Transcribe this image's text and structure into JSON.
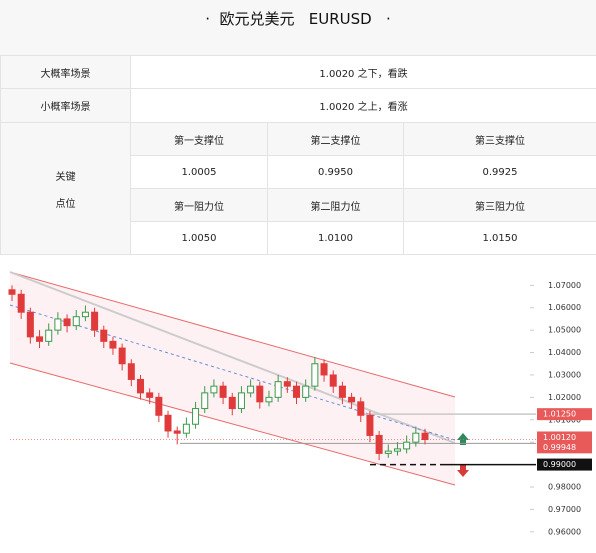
{
  "header": {
    "title": "·  欧元兑美元   EURUSD   ·"
  },
  "table": {
    "rows": [
      [
        "大概率场景",
        "1.0020 之下，看跌"
      ],
      [
        "小概率场景",
        "1.0020 之上，看涨"
      ]
    ]
  },
  "key_levels": {
    "label_lines": [
      "关键",
      "点位"
    ],
    "support_headers": [
      "第一支撑位",
      "第二支撑位",
      "第三支撑位"
    ],
    "support_values": [
      "1.0005",
      "0.9950",
      "0.9925"
    ],
    "resistance_headers": [
      "第一阻力位",
      "第二阻力位",
      "第三阻力位"
    ],
    "resistance_values": [
      "1.0050",
      "1.0100",
      "1.0150"
    ]
  },
  "chart": {
    "type": "candlestick",
    "up_color": "#3a9a4a",
    "down_color": "#e03a3a",
    "ylim": [
      0.955,
      1.0755
    ],
    "yticks": [
      {
        "value": 1.07,
        "label": "1.07000"
      },
      {
        "value": 1.06,
        "label": "1.06000"
      },
      {
        "value": 1.05,
        "label": "1.05000"
      },
      {
        "value": 1.04,
        "label": "1.04000"
      },
      {
        "value": 1.03,
        "label": "1.03000"
      },
      {
        "value": 1.02,
        "label": "1.02000"
      },
      {
        "value": 1.01,
        "label": "1.01000"
      },
      {
        "value": 1.0,
        "label": "1.00000"
      },
      {
        "value": 0.99,
        "label": "0.99000"
      },
      {
        "value": 0.98,
        "label": "0.98000"
      },
      {
        "value": 0.97,
        "label": "0.97000"
      },
      {
        "value": 0.96,
        "label": "0.96000"
      }
    ],
    "open": [
      1.068,
      1.066,
      1.058,
      1.047,
      1.045,
      1.05,
      1.055,
      1.052,
      1.056,
      1.058,
      1.05,
      1.045,
      1.042,
      1.035,
      1.028,
      1.022,
      1.02,
      1.012,
      1.005,
      1.004,
      1.008,
      1.015,
      1.022,
      1.025,
      1.02,
      1.015,
      1.022,
      1.025,
      1.018,
      1.02,
      1.027,
      1.025,
      1.02,
      1.025,
      1.035,
      1.03,
      1.025,
      1.02,
      1.018,
      1.012,
      1.003,
      0.995,
      0.996,
      0.997,
      1.0,
      1.004
    ],
    "high": [
      1.07,
      1.068,
      1.06,
      1.05,
      1.053,
      1.058,
      1.057,
      1.059,
      1.061,
      1.06,
      1.052,
      1.047,
      1.044,
      1.037,
      1.03,
      1.024,
      1.022,
      1.014,
      1.007,
      1.011,
      1.018,
      1.025,
      1.028,
      1.027,
      1.022,
      1.025,
      1.028,
      1.027,
      1.023,
      1.03,
      1.029,
      1.027,
      1.028,
      1.038,
      1.037,
      1.032,
      1.027,
      1.022,
      1.02,
      1.014,
      1.005,
      0.999,
      1.0,
      1.003,
      1.007,
      1.006
    ],
    "low": [
      1.063,
      1.055,
      1.044,
      1.042,
      1.043,
      1.048,
      1.049,
      1.05,
      1.054,
      1.047,
      1.042,
      1.039,
      1.032,
      1.025,
      1.019,
      1.017,
      1.009,
      1.002,
      0.999,
      1.002,
      1.006,
      1.013,
      1.02,
      1.017,
      1.012,
      1.013,
      1.02,
      1.015,
      1.016,
      1.018,
      1.022,
      1.017,
      1.018,
      1.023,
      1.027,
      1.022,
      1.017,
      1.015,
      1.009,
      1.0,
      0.992,
      0.993,
      0.994,
      0.995,
      0.998,
      0.999
    ],
    "close": [
      1.066,
      1.058,
      1.047,
      1.045,
      1.05,
      1.055,
      1.052,
      1.056,
      1.058,
      1.05,
      1.045,
      1.042,
      1.035,
      1.028,
      1.022,
      1.02,
      1.012,
      1.005,
      1.004,
      1.008,
      1.015,
      1.022,
      1.025,
      1.02,
      1.015,
      1.022,
      1.025,
      1.018,
      1.02,
      1.027,
      1.025,
      1.02,
      1.025,
      1.035,
      1.03,
      1.025,
      1.02,
      1.018,
      1.012,
      1.003,
      0.995,
      0.996,
      0.997,
      1.0,
      1.004,
      1.0012
    ],
    "price_tags": [
      {
        "value": 1.0125,
        "label": "1.01250",
        "color": "#e85a5a"
      },
      {
        "value": 1.0012,
        "label": "1.00120",
        "color": "#e85a5a"
      },
      {
        "value": 0.99948,
        "label": "0.99948",
        "color": "#e85a5a"
      },
      {
        "value": 0.99,
        "label": "0.99000",
        "color": "#111111"
      }
    ]
  }
}
